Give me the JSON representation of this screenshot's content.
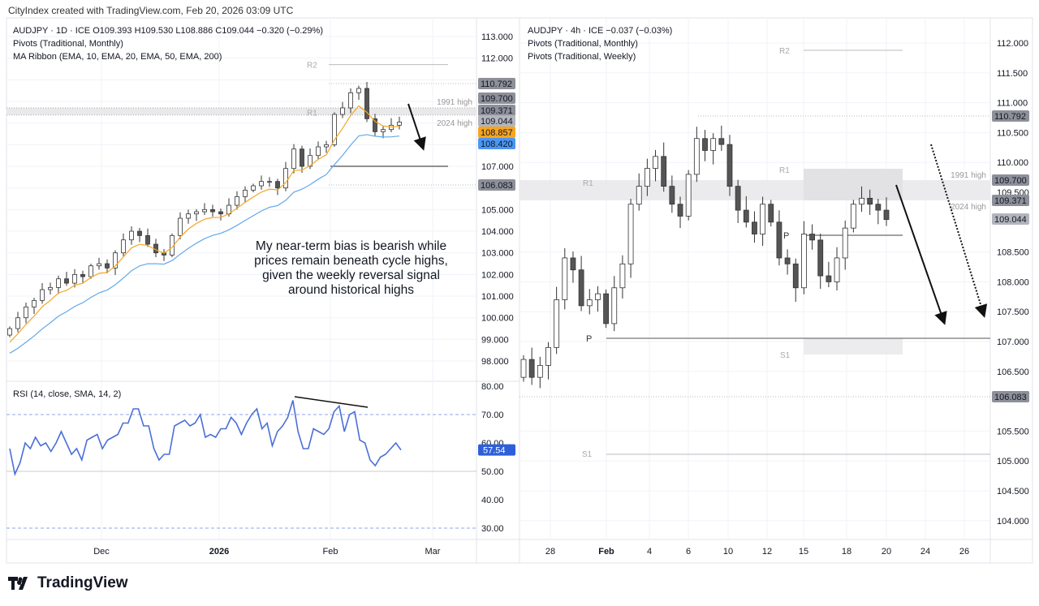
{
  "header": {
    "credit": "CityIndex created with TradingView.com, Feb 20, 2026 03:09 UTC"
  },
  "footer": {
    "brand": "TradingView"
  },
  "left_panel": {
    "legend": [
      "AUDJPY · 1D · ICE  O109.393  H109.530  L108.886  C109.044  −0.320 (−0.29%)",
      "Pivots (Traditional, Monthly)",
      "MA Ribbon (EMA, 10, EMA, 20, EMA, 50, EMA, 200)"
    ],
    "rsi_legend": "RSI (14, close, SMA, 14, 2)",
    "annotation": "My near-term bias is bearish while prices remain beneath cycle highs, given the weekly reversal signal around historical highs"
  },
  "right_panel": {
    "legend": [
      "AUDJPY · 4h · ICE  −0.037 (−0.03%)",
      "Pivots (Traditional, Monthly)",
      "Pivots (Traditional, Weekly)"
    ]
  },
  "colors": {
    "ema_fast": "#f5a623",
    "ema_slow": "#64a8e8",
    "rsi": "#4a6fd6",
    "tag_gray": "#8d9099",
    "tag_orange": "#f7a521",
    "tag_blue": "#4b96f3"
  },
  "chart_data": [
    {
      "type": "candlestick",
      "symbol": "AUDJPY",
      "timeframe": "1D",
      "x_ticks": [
        "Dec",
        "2026",
        "Feb",
        "Mar"
      ],
      "y_ticks": [
        "113.000",
        "112.000",
        "107.000",
        "105.000",
        "104.000",
        "103.000",
        "102.000",
        "101.000",
        "100.000",
        "99.000",
        "98.000"
      ],
      "ylim": [
        97.5,
        113.2
      ],
      "close": [
        99.5,
        100.0,
        100.5,
        100.8,
        101.3,
        101.4,
        101.8,
        101.6,
        102.0,
        101.9,
        102.4,
        102.5,
        102.3,
        103.0,
        103.6,
        104.0,
        103.8,
        103.4,
        103.0,
        102.9,
        103.8,
        104.6,
        104.8,
        104.9,
        105.0,
        104.9,
        104.8,
        105.2,
        105.6,
        105.9,
        106.1,
        106.3,
        106.3,
        106.0,
        106.9,
        107.8,
        107.0,
        107.5,
        107.9,
        108.0,
        109.4,
        109.7,
        110.4,
        110.6,
        109.2,
        108.6,
        108.7,
        108.9,
        109.044
      ],
      "price_tags": [
        {
          "value": "110.792",
          "color": "gray"
        },
        {
          "value": "109.700",
          "color": "gray"
        },
        {
          "value": "109.371",
          "color": "gray"
        },
        {
          "value": "109.044",
          "color": "lightgray"
        },
        {
          "value": "108.857",
          "color": "orange"
        },
        {
          "value": "108.420",
          "color": "blue"
        },
        {
          "value": "106.083",
          "color": "gray"
        }
      ],
      "levels": [
        {
          "label": "R2",
          "value": 111.7
        },
        {
          "label": "R1",
          "value": 109.5
        },
        {
          "label": "1991 high",
          "value": 109.7
        },
        {
          "label": "2024 high",
          "value": 109.371
        },
        {
          "label": "",
          "value": 107.0
        }
      ]
    },
    {
      "type": "line",
      "name": "RSI (14, close, SMA, 14, 2)",
      "y_ticks": [
        "80.00",
        "70.00",
        "60.00",
        "50.00",
        "40.00",
        "30.00"
      ],
      "ylim": [
        26,
        82
      ],
      "bands": [
        70,
        50,
        30
      ],
      "last_value": "57.54",
      "values": [
        58,
        49,
        53,
        60,
        58,
        62,
        59,
        60,
        57,
        60,
        64,
        60,
        56,
        58,
        54,
        61,
        62,
        63,
        58,
        61,
        62,
        63,
        67,
        67,
        72,
        72,
        66,
        66,
        58,
        54,
        56,
        56,
        66,
        67,
        68,
        66,
        67,
        70,
        62,
        63,
        62,
        65,
        65,
        69,
        67,
        63,
        67,
        70,
        72,
        65,
        67,
        59,
        64,
        66,
        69,
        75,
        64,
        58,
        58,
        65,
        64,
        63,
        65,
        71,
        73,
        64,
        70,
        71,
        61,
        60,
        54,
        52,
        55,
        56,
        58,
        60,
        57.54
      ]
    },
    {
      "type": "candlestick",
      "symbol": "AUDJPY",
      "timeframe": "4h",
      "x_ticks": [
        "28",
        "Feb",
        "4",
        "6",
        "10",
        "12",
        "15",
        "18",
        "20",
        "24",
        "26"
      ],
      "y_ticks": [
        "112.000",
        "111.500",
        "111.000",
        "110.500",
        "110.000",
        "109.500",
        "108.500",
        "108.000",
        "107.500",
        "107.000",
        "106.500",
        "105.500",
        "105.000",
        "104.500",
        "104.000"
      ],
      "ylim": [
        103.7,
        112.3
      ],
      "close": [
        106.7,
        106.4,
        106.6,
        106.9,
        107.7,
        108.4,
        108.2,
        107.6,
        107.7,
        107.8,
        107.3,
        107.9,
        108.3,
        109.3,
        109.6,
        109.9,
        110.1,
        109.6,
        109.3,
        109.1,
        109.8,
        110.4,
        110.2,
        110.4,
        110.3,
        109.6,
        109.2,
        109.0,
        108.8,
        109.3,
        109.0,
        108.4,
        108.3,
        107.9,
        108.8,
        108.7,
        108.1,
        108.0,
        108.4,
        108.9,
        109.3,
        109.4,
        109.3,
        109.2,
        109.044
      ],
      "price_tags": [
        {
          "value": "110.792",
          "color": "gray"
        },
        {
          "value": "109.700",
          "color": "gray"
        },
        {
          "value": "109.371",
          "color": "gray"
        },
        {
          "value": "109.044",
          "color": "lightgray"
        },
        {
          "value": "106.083",
          "color": "gray"
        }
      ],
      "levels": [
        {
          "label": "R2",
          "value": 111.9
        },
        {
          "label": "R1",
          "value": 109.5
        },
        {
          "label": "R1",
          "value": 109.85
        },
        {
          "label": "1991 high",
          "value": 109.7
        },
        {
          "label": "2024 high",
          "value": 109.371
        },
        {
          "label": "P",
          "value": 108.8
        },
        {
          "label": "P",
          "value": 107.05
        },
        {
          "label": "S1",
          "value": 106.78
        },
        {
          "label": "S1",
          "value": 105.1
        }
      ]
    }
  ]
}
